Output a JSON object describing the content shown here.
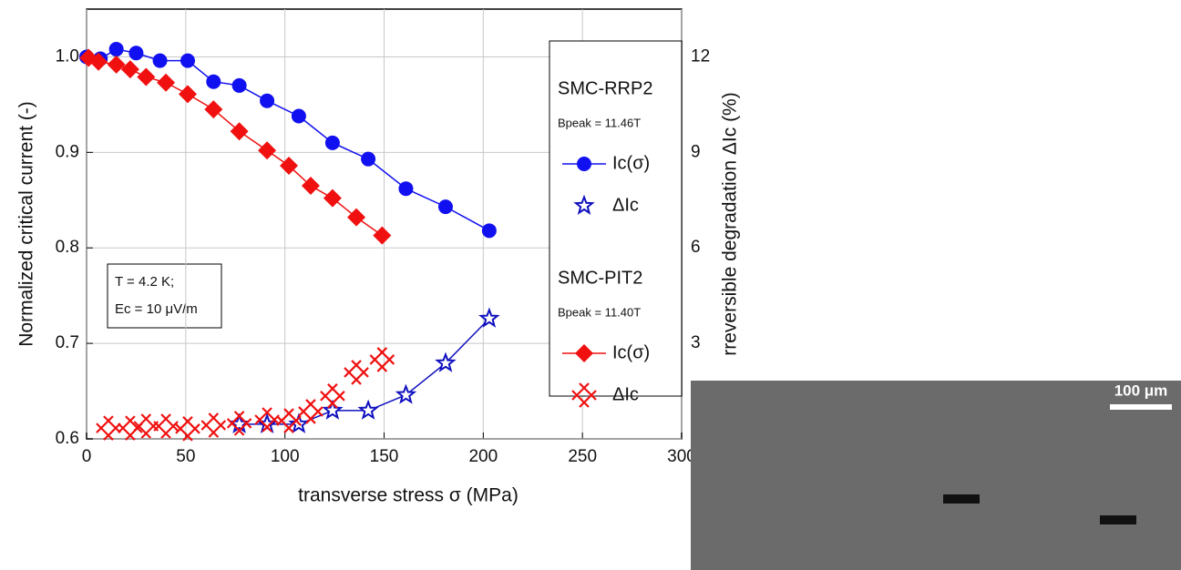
{
  "chart_data": {
    "type": "line",
    "xlabel": "transverse stress σ (MPa)",
    "ylabel": "Normalized critical current (-)",
    "y2label": "rreversible degradation ΔIc (%)",
    "xlim": [
      0,
      300
    ],
    "xticks": [
      0,
      50,
      100,
      150,
      200,
      250,
      300
    ],
    "ylim": [
      0.6,
      1.05
    ],
    "yticks": [
      0.6,
      0.7,
      0.8,
      0.9,
      {
        "value": 1,
        "label": "1.0"
      }
    ],
    "y2lim": [
      0,
      13.5
    ],
    "y2ticks": [
      3,
      6,
      9,
      12
    ],
    "grid": true,
    "annotation": [
      "T = 4.2 K;",
      "Ec = 10 μV/m"
    ],
    "legend_groups": [
      {
        "title": "SMC-RRP2",
        "subtitle": "Bpeak = 11.46T"
      },
      {
        "title": "SMC-PIT2",
        "subtitle": "Bpeak = 11.40T"
      }
    ],
    "series": [
      {
        "name": "Ic(σ)",
        "group": 0,
        "color": "#1010f0",
        "marker": "circle",
        "line": true,
        "x": [
          0,
          7,
          15,
          25,
          37,
          51,
          64,
          77,
          91,
          107,
          124,
          142,
          161,
          181,
          203
        ],
        "values": [
          1.0,
          0.998,
          1.008,
          1.004,
          0.996,
          0.996,
          0.974,
          0.97,
          0.954,
          0.938,
          0.91,
          0.893,
          0.862,
          0.843,
          0.818
        ]
      },
      {
        "name": "ΔIc",
        "group": 0,
        "color": "#1010c0",
        "marker": "star",
        "line": true,
        "axis": "y2",
        "x": [
          77,
          91,
          107,
          124,
          142,
          161,
          181,
          203
        ],
        "values": [
          0.46,
          0.46,
          0.46,
          0.89,
          0.89,
          1.38,
          2.38,
          3.78
        ]
      },
      {
        "name": "Ic(σ)",
        "group": 1,
        "color": "#f01010",
        "marker": "diamond",
        "line": true,
        "x": [
          1,
          6,
          15,
          22,
          30,
          40,
          51,
          64,
          77,
          91,
          102,
          113,
          124,
          136,
          149
        ],
        "values": [
          0.999,
          0.995,
          0.992,
          0.987,
          0.979,
          0.973,
          0.961,
          0.945,
          0.922,
          0.902,
          0.886,
          0.865,
          0.852,
          0.832,
          0.813
        ]
      },
      {
        "name": "ΔIc",
        "group": 1,
        "color": "#f01010",
        "marker": "cross",
        "line": false,
        "axis": "y2",
        "x": [
          11,
          22,
          30,
          40,
          51,
          64,
          77,
          91,
          102,
          113,
          124,
          136,
          149
        ],
        "values": [
          0.34,
          0.34,
          0.4,
          0.4,
          0.32,
          0.43,
          0.49,
          0.6,
          0.57,
          0.86,
          1.35,
          2.09,
          2.49
        ]
      }
    ],
    "inset": {
      "scale_bar": "100 μm"
    }
  }
}
